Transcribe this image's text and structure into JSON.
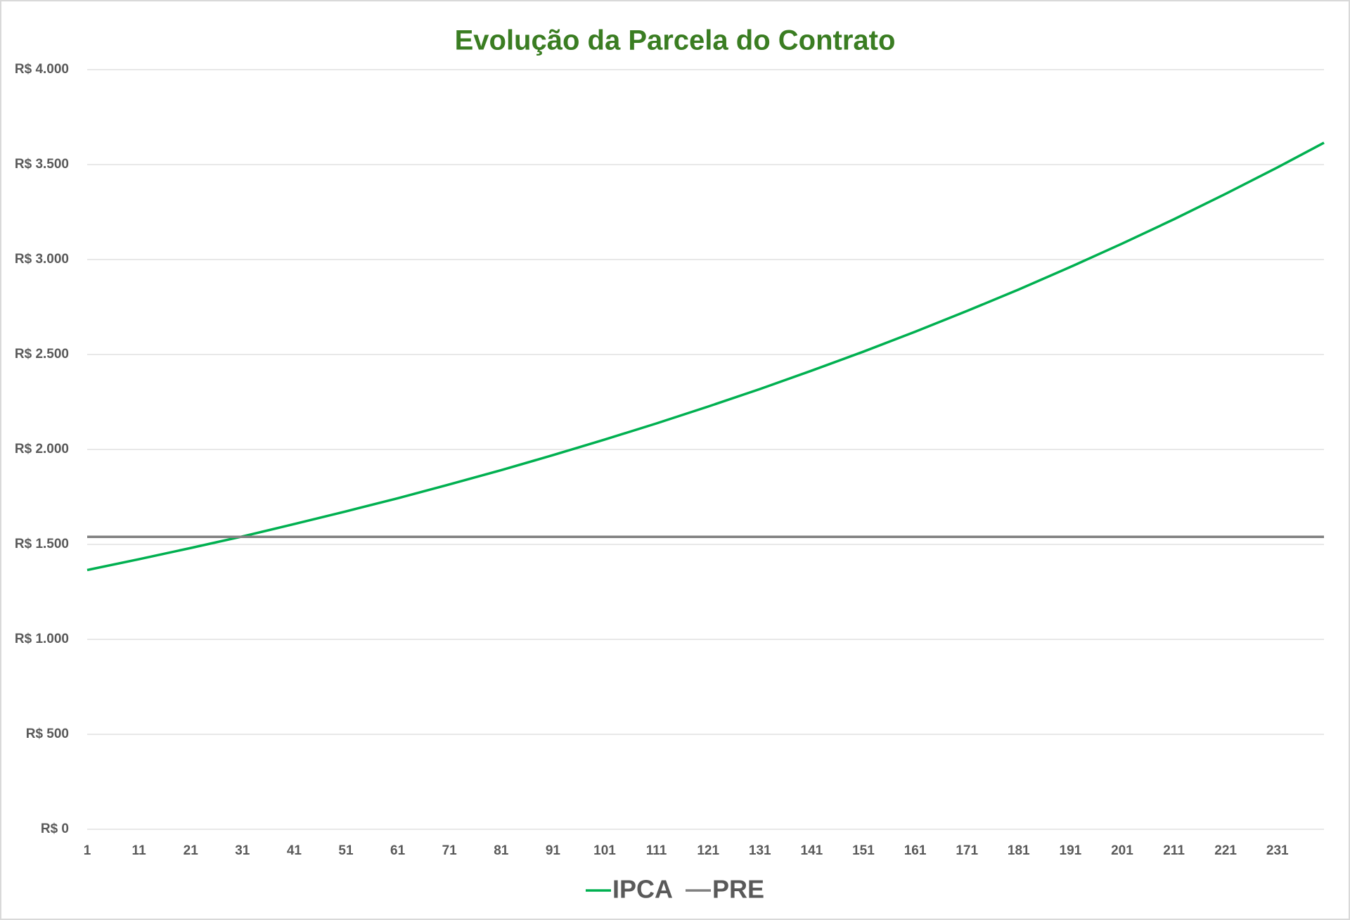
{
  "chart_data": {
    "type": "line",
    "title": "Evolução da Parcela do Contrato",
    "title_color": "#3a7d22",
    "x": [
      1,
      11,
      21,
      31,
      41,
      51,
      61,
      71,
      81,
      91,
      101,
      111,
      121,
      131,
      141,
      151,
      161,
      171,
      181,
      191,
      201,
      211,
      221,
      231,
      240
    ],
    "series": [
      {
        "name": "IPCA",
        "color": "#00b050",
        "values": [
          1365,
          1422,
          1481,
          1542,
          1607,
          1674,
          1743,
          1816,
          1891,
          1970,
          2052,
          2137,
          2226,
          2318,
          2415,
          2515,
          2620,
          2729,
          2842,
          2961,
          3084,
          3212,
          3346,
          3485,
          3615
        ]
      },
      {
        "name": "PRE",
        "color": "#808080",
        "values": [
          1540,
          1540,
          1540,
          1540,
          1540,
          1540,
          1540,
          1540,
          1540,
          1540,
          1540,
          1540,
          1540,
          1540,
          1540,
          1540,
          1540,
          1540,
          1540,
          1540,
          1540,
          1540,
          1540,
          1540,
          1540
        ]
      }
    ],
    "xlim": [
      1,
      240
    ],
    "xticks": [
      1,
      11,
      21,
      31,
      41,
      51,
      61,
      71,
      81,
      91,
      101,
      111,
      121,
      131,
      141,
      151,
      161,
      171,
      181,
      191,
      201,
      211,
      221,
      231
    ],
    "ylim": [
      0,
      4000
    ],
    "yticks": [
      {
        "value": 0,
        "label": "R$ 0"
      },
      {
        "value": 500,
        "label": "R$ 500"
      },
      {
        "value": 1000,
        "label": "R$ 1.000"
      },
      {
        "value": 1500,
        "label": "R$ 1.500"
      },
      {
        "value": 2000,
        "label": "R$ 2.000"
      },
      {
        "value": 2500,
        "label": "R$ 2.500"
      },
      {
        "value": 3000,
        "label": "R$ 3.000"
      },
      {
        "value": 3500,
        "label": "R$ 3.500"
      },
      {
        "value": 4000,
        "label": "R$ 4.000"
      }
    ],
    "grid": true,
    "legend": "bottom"
  }
}
